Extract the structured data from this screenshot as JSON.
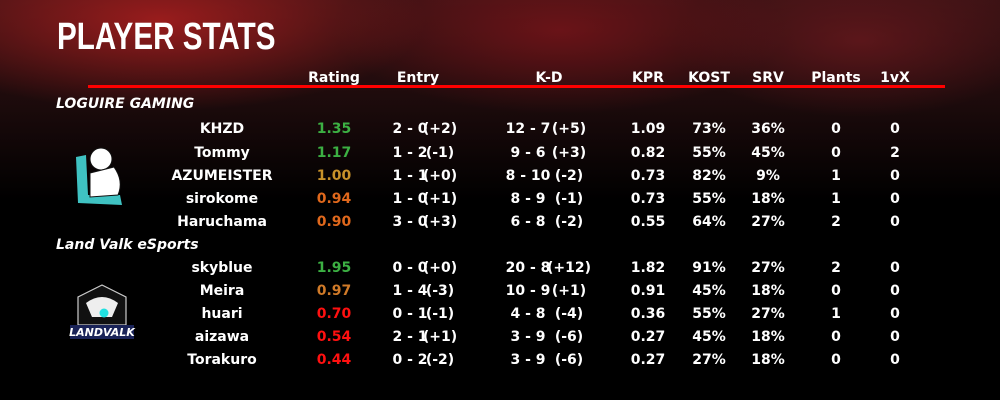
{
  "title": "PLAYER STATS",
  "columns": [
    "Rating",
    "Entry",
    "K-D",
    "KPR",
    "KOST",
    "SRV",
    "Plants",
    "1vX"
  ],
  "colors": {
    "accent": "#ff0000",
    "rating_high": "#3cb043",
    "rating_mid": "#c8922a",
    "rating_lowmid": "#e0681c",
    "rating_low": "#ff1010"
  },
  "teams": [
    {
      "name": "LOGUIRE GAMING",
      "logo": "loguire-logo",
      "players": [
        {
          "name": "KHZD",
          "rating": "1.35",
          "rc": "#3cb043",
          "entry": "2 - 0",
          "entry_diff": "(+2)",
          "kd": "12 - 7",
          "kd_diff": "(+5)",
          "kpr": "1.09",
          "kost": "73%",
          "srv": "36%",
          "plants": "0",
          "clutch": "0"
        },
        {
          "name": "Tommy",
          "rating": "1.17",
          "rc": "#3cb043",
          "entry": "1 - 2",
          "entry_diff": "(-1)",
          "kd": "9 - 6",
          "kd_diff": "(+3)",
          "kpr": "0.82",
          "kost": "55%",
          "srv": "45%",
          "plants": "0",
          "clutch": "2"
        },
        {
          "name": "AZUMEISTER",
          "rating": "1.00",
          "rc": "#c8922a",
          "entry": "1 - 1",
          "entry_diff": "(+0)",
          "kd": "8 - 10",
          "kd_diff": "(-2)",
          "kpr": "0.73",
          "kost": "82%",
          "srv": "9%",
          "plants": "1",
          "clutch": "0"
        },
        {
          "name": "sirokome",
          "rating": "0.94",
          "rc": "#e0681c",
          "entry": "1 - 0",
          "entry_diff": "(+1)",
          "kd": "8 - 9",
          "kd_diff": "(-1)",
          "kpr": "0.73",
          "kost": "55%",
          "srv": "18%",
          "plants": "1",
          "clutch": "0"
        },
        {
          "name": "Haruchama",
          "rating": "0.90",
          "rc": "#e0681c",
          "entry": "3 - 0",
          "entry_diff": "(+3)",
          "kd": "6 - 8",
          "kd_diff": "(-2)",
          "kpr": "0.55",
          "kost": "64%",
          "srv": "27%",
          "plants": "2",
          "clutch": "0"
        }
      ]
    },
    {
      "name": "Land Valk eSports",
      "logo": "landvalk-logo",
      "logo_text": "LANDVALK",
      "players": [
        {
          "name": "skyblue",
          "rating": "1.95",
          "rc": "#3cb043",
          "entry": "0 - 0",
          "entry_diff": "(+0)",
          "kd": "20 - 8",
          "kd_diff": "(+12)",
          "kpr": "1.82",
          "kost": "91%",
          "srv": "27%",
          "plants": "2",
          "clutch": "0"
        },
        {
          "name": "Meira",
          "rating": "0.97",
          "rc": "#d07a28",
          "entry": "1 - 4",
          "entry_diff": "(-3)",
          "kd": "10 - 9",
          "kd_diff": "(+1)",
          "kpr": "0.91",
          "kost": "45%",
          "srv": "18%",
          "plants": "0",
          "clutch": "0"
        },
        {
          "name": "huari",
          "rating": "0.70",
          "rc": "#ff1010",
          "entry": "0 - 1",
          "entry_diff": "(-1)",
          "kd": "4 - 8",
          "kd_diff": "(-4)",
          "kpr": "0.36",
          "kost": "55%",
          "srv": "27%",
          "plants": "1",
          "clutch": "0"
        },
        {
          "name": "aizawa",
          "rating": "0.54",
          "rc": "#ff1010",
          "entry": "2 - 1",
          "entry_diff": "(+1)",
          "kd": "3 - 9",
          "kd_diff": "(-6)",
          "kpr": "0.27",
          "kost": "45%",
          "srv": "18%",
          "plants": "0",
          "clutch": "0"
        },
        {
          "name": "Torakuro",
          "rating": "0.44",
          "rc": "#ff1010",
          "entry": "0 - 2",
          "entry_diff": "(-2)",
          "kd": "3 - 9",
          "kd_diff": "(-6)",
          "kpr": "0.27",
          "kost": "27%",
          "srv": "18%",
          "plants": "0",
          "clutch": "0"
        }
      ]
    }
  ]
}
